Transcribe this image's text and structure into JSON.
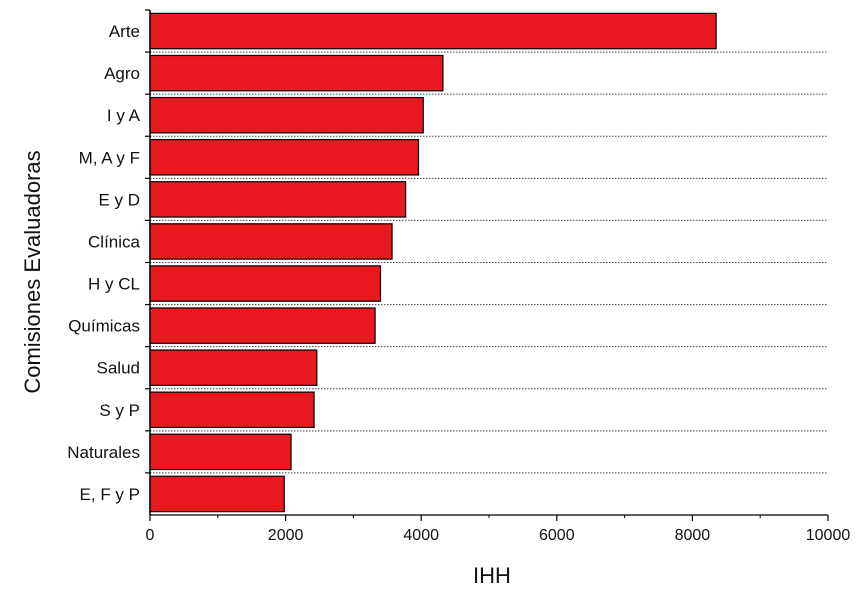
{
  "chart_data": {
    "type": "bar",
    "orientation": "horizontal",
    "categories": [
      "Arte",
      "Agro",
      "I y A",
      "M, A y F",
      "E y D",
      "Clínica",
      "H y CL",
      "Químicas",
      "Salud",
      "S y P",
      "Naturales",
      "E, F y P"
    ],
    "values": [
      8350,
      4320,
      4030,
      3960,
      3770,
      3570,
      3400,
      3320,
      2460,
      2420,
      2080,
      1980
    ],
    "xlabel": "IHH",
    "ylabel": "Comisiones Evaluadoras",
    "xlim": [
      0,
      10000
    ],
    "x_ticks": [
      "0",
      "2000",
      "4000",
      "6000",
      "8000",
      "10000"
    ],
    "bar_color": "#e8191f",
    "grid": "dotted horizontal separators between categories"
  }
}
